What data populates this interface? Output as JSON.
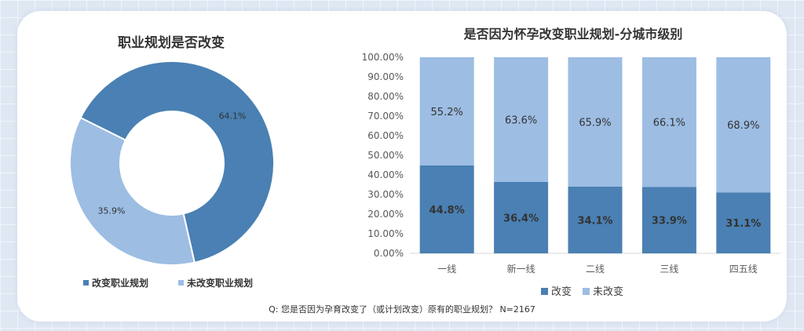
{
  "colors": {
    "changed": "#4a80b3",
    "unchanged": "#9dbde3",
    "text": "#333333",
    "grid": "#d9d9d9"
  },
  "footnote": "Q:  您是否因为孕育改变了（或计划改变）原有的职业规划？ N=2167",
  "chart_data": [
    {
      "type": "pie",
      "title": "职业规划是否改变",
      "labels": [
        "改变职业规划",
        "未改变职业规划"
      ],
      "values": [
        64.1,
        35.9
      ],
      "value_labels": [
        "64.1%",
        "35.9%"
      ],
      "legend": "bottom"
    },
    {
      "type": "bar",
      "title": "是否因为怀孕改变职业规划-分城市级别",
      "categories": [
        "一线",
        "新一线",
        "二线",
        "三线",
        "四五线"
      ],
      "series": [
        {
          "name": "改变",
          "values": [
            44.8,
            36.4,
            34.1,
            33.9,
            31.1
          ],
          "labels": [
            "44.8%",
            "36.4%",
            "34.1%",
            "33.9%",
            "31.1%"
          ]
        },
        {
          "name": "未改变",
          "values": [
            55.2,
            63.6,
            65.9,
            66.1,
            68.9
          ],
          "labels": [
            "55.2%",
            "63.6%",
            "65.9%",
            "66.1%",
            "68.9%"
          ]
        }
      ],
      "y_ticks": [
        "0.00%",
        "10.00%",
        "20.00%",
        "30.00%",
        "40.00%",
        "50.00%",
        "60.00%",
        "70.00%",
        "80.00%",
        "90.00%",
        "100.00%"
      ],
      "ylim": [
        0,
        100
      ],
      "stacked": true,
      "legend": "bottom"
    }
  ]
}
